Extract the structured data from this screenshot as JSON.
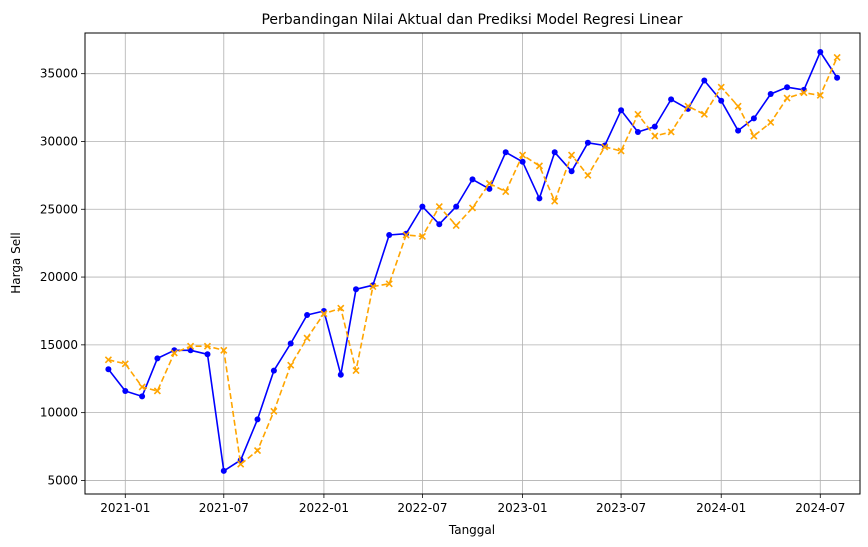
{
  "chart_data": {
    "type": "line",
    "title": "Perbandingan Nilai Aktual dan Prediksi Model Regresi Linear",
    "xlabel": "Tanggal",
    "ylabel": "Harga Sell",
    "x_ticks": [
      "2021-01",
      "2021-07",
      "2022-01",
      "2022-07",
      "2023-01",
      "2023-07",
      "2024-01",
      "2024-07"
    ],
    "y_ticks": [
      5000,
      10000,
      15000,
      20000,
      25000,
      30000,
      35000
    ],
    "y_tick_labels": [
      "5000",
      "10000",
      "15000",
      "20000",
      "25000",
      "30000",
      "35000"
    ],
    "ylim": [
      4000,
      38000
    ],
    "xlim": [
      "2020-10-19",
      "2024-09-12"
    ],
    "grid": true,
    "x": [
      "2020-12",
      "2021-01",
      "2021-02",
      "2021-03",
      "2021-04",
      "2021-05",
      "2021-06",
      "2021-07",
      "2021-08",
      "2021-09",
      "2021-10",
      "2021-11",
      "2021-12",
      "2022-01",
      "2022-02",
      "2022-03",
      "2022-04",
      "2022-05",
      "2022-06",
      "2022-07",
      "2022-08",
      "2022-09",
      "2022-10",
      "2022-11",
      "2022-12",
      "2023-01",
      "2023-02",
      "2023-03",
      "2023-04",
      "2023-05",
      "2023-06",
      "2023-07",
      "2023-08",
      "2023-09",
      "2023-10",
      "2023-11",
      "2023-12",
      "2024-01",
      "2024-02",
      "2024-03",
      "2024-04",
      "2024-05",
      "2024-06",
      "2024-07",
      "2024-08"
    ],
    "series": [
      {
        "style": "actual",
        "color": "#0000ff",
        "marker": "circle",
        "line": "solid",
        "values": [
          13200,
          11600,
          11200,
          14000,
          14600,
          14600,
          14300,
          5700,
          6500,
          9500,
          13100,
          15100,
          17200,
          17500,
          12800,
          19100,
          19400,
          23100,
          23200,
          25200,
          23900,
          25200,
          27200,
          26500,
          29200,
          28500,
          25800,
          29200,
          27800,
          29900,
          29700,
          32300,
          30700,
          31100,
          33100,
          32400,
          34500,
          33000,
          30800,
          31700,
          33500,
          34000,
          33800,
          36600,
          34700
        ]
      },
      {
        "style": "predicted",
        "color": "#ffa500",
        "marker": "x",
        "line": "dashed",
        "values": [
          13900,
          13600,
          11900,
          11600,
          14400,
          14900,
          14900,
          14600,
          6200,
          7200,
          10100,
          13500,
          15500,
          17300,
          17700,
          13100,
          19300,
          19500,
          23100,
          23000,
          25200,
          23800,
          25100,
          26900,
          26300,
          29000,
          28200,
          25600,
          29000,
          27500,
          29600,
          29300,
          32000,
          30400,
          30700,
          32600,
          32000,
          34000,
          32600,
          30400,
          31400,
          33200,
          33600,
          33400,
          36200
        ]
      }
    ]
  }
}
